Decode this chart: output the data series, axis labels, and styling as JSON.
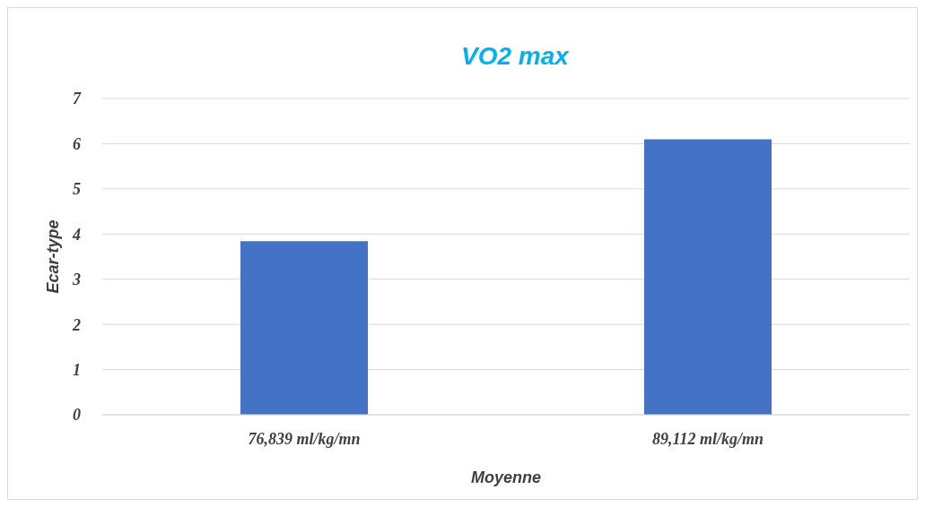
{
  "chart_data": {
    "type": "bar",
    "title": "VO2 max",
    "xlabel": "Moyenne",
    "ylabel": "Ecar-type",
    "categories": [
      "76,839 ml/kg/mn",
      "89,112 ml/kg/mn"
    ],
    "values": [
      3.84,
      6.1
    ],
    "color": "#4472c4",
    "ylim": [
      0,
      7
    ],
    "yticks": [
      0,
      1,
      2,
      3,
      4,
      5,
      6,
      7
    ],
    "grid": "y",
    "legend": false
  }
}
